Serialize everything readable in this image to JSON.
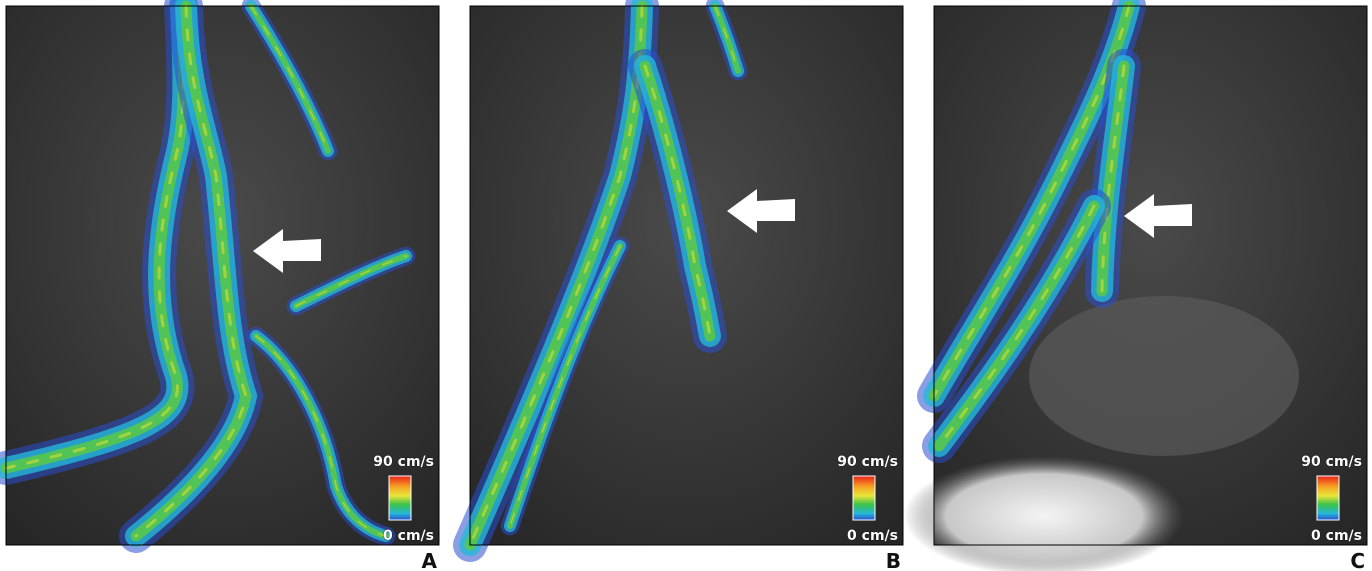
{
  "panels": [
    {
      "label": "A",
      "scale": {
        "max": "90 cm/s",
        "min": "0 cm/s"
      }
    },
    {
      "label": "B",
      "scale": {
        "max": "90 cm/s",
        "min": "0 cm/s"
      }
    },
    {
      "label": "C",
      "scale": {
        "max": "90 cm/s",
        "min": "0 cm/s"
      }
    }
  ]
}
